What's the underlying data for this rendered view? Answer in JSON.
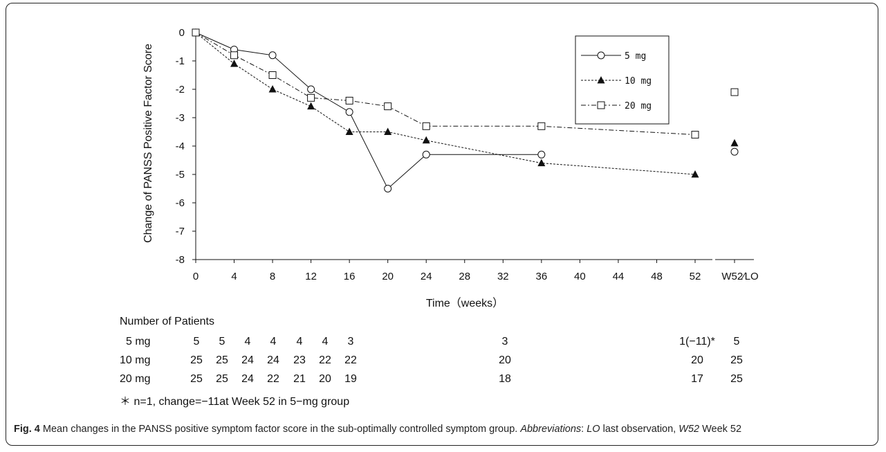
{
  "chart_data": {
    "type": "line",
    "ylabel": "Change of PANSS Positive Factor Score",
    "xlabel": "Time（weeks）",
    "ylim": [
      -8,
      0
    ],
    "yticks": [
      "0",
      "-1",
      "-2",
      "-3",
      "-4",
      "-5",
      "-6",
      "-7",
      "-8"
    ],
    "xticks": [
      "0",
      "4",
      "8",
      "12",
      "16",
      "20",
      "24",
      "28",
      "32",
      "36",
      "40",
      "44",
      "48",
      "52"
    ],
    "xtick_extra": "W52∕LO",
    "legend_position": "top-right",
    "series": [
      {
        "name": "5 mg",
        "marker": "circle",
        "dash": "solid",
        "x": [
          0,
          4,
          8,
          12,
          16,
          20,
          24,
          36
        ],
        "y": [
          0,
          -0.6,
          -0.8,
          -2.0,
          -2.8,
          -5.5,
          -4.3,
          -4.3
        ],
        "lo": -4.2
      },
      {
        "name": "10 mg",
        "marker": "triangle",
        "dash": "dotted",
        "x": [
          0,
          4,
          8,
          12,
          16,
          20,
          24,
          36,
          52
        ],
        "y": [
          0,
          -1.1,
          -2.0,
          -2.6,
          -3.5,
          -3.5,
          -3.8,
          -4.6,
          -5.0
        ],
        "lo": -3.9
      },
      {
        "name": "20 mg",
        "marker": "square",
        "dash": "dashdot",
        "x": [
          0,
          4,
          8,
          12,
          16,
          20,
          24,
          36,
          52
        ],
        "y": [
          0,
          -0.8,
          -1.5,
          -2.3,
          -2.4,
          -2.6,
          -3.3,
          -3.3,
          -3.6
        ],
        "lo": -2.1
      }
    ]
  },
  "patients": {
    "title": "Number of Patients",
    "rows": [
      {
        "label": "5 mg",
        "counts": [
          "5",
          "5",
          "4",
          "4",
          "4",
          "4",
          "3",
          "3",
          "1(−11)*",
          "5"
        ]
      },
      {
        "label": "10 mg",
        "counts": [
          "25",
          "25",
          "24",
          "24",
          "23",
          "22",
          "22",
          "20",
          "20",
          "25"
        ]
      },
      {
        "label": "20 mg",
        "counts": [
          "25",
          "25",
          "24",
          "22",
          "21",
          "20",
          "19",
          "18",
          "17",
          "25"
        ]
      }
    ],
    "footnote": "＊ n=1, change=−11at Week 52 in 5−mg group"
  },
  "caption": {
    "label": "Fig. 4",
    "text": " Mean changes in the PANSS positive symptom factor score in the sub-optimally controlled symptom group. ",
    "abbr_label": "Abbreviations",
    "abbr_text": ": ",
    "lo_abbr": "LO",
    "lo_text": " last observation, ",
    "w52_abbr": "W52",
    "w52_text": " Week 52"
  }
}
